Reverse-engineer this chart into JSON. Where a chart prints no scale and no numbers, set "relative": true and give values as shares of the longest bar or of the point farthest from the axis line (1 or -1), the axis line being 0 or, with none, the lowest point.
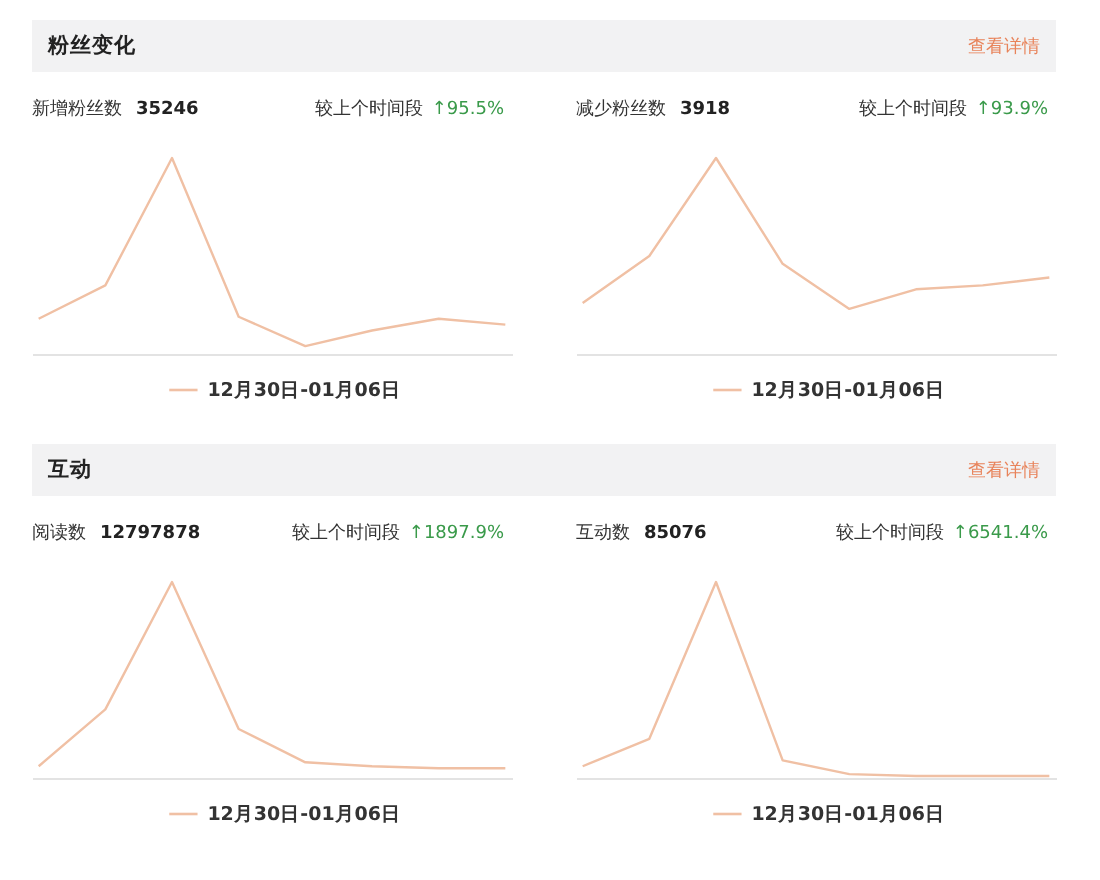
{
  "chart_data": [
    {
      "type": "other",
      "title": "粉丝变化",
      "annotations": [
        "查看详情"
      ]
    },
    {
      "type": "line",
      "title": "新增粉丝数",
      "subtitle": "35246",
      "annotations": [
        "较上个时间段",
        "↑95.5%"
      ],
      "categories": [
        null,
        null,
        null,
        null,
        null,
        null,
        null,
        null
      ],
      "series": [
        {
          "name": "12月30日-01月06日",
          "color": "#f0c0a4",
          "values": [
            0.18,
            0.35,
            1,
            0.19,
            0.04,
            0.12,
            0.18,
            0.15
          ]
        }
      ],
      "relative": true,
      "legend": "bottom",
      "tick_labels": false
    },
    {
      "type": "line",
      "title": "减少粉丝数",
      "subtitle": "3918",
      "annotations": [
        "较上个时间段",
        "↑93.9%"
      ],
      "categories": [
        null,
        null,
        null,
        null,
        null,
        null,
        null,
        null
      ],
      "series": [
        {
          "name": "12月30日-01月06日",
          "color": "#f0c0a4",
          "values": [
            0.26,
            0.5,
            1,
            0.46,
            0.23,
            0.33,
            0.35,
            0.39
          ]
        }
      ],
      "relative": true,
      "legend": "bottom",
      "tick_labels": false
    },
    {
      "type": "other",
      "title": "互动",
      "annotations": [
        "查看详情"
      ]
    },
    {
      "type": "line",
      "title": "阅读数",
      "subtitle": "12797878",
      "annotations": [
        "较上个时间段",
        "↑1897.9%"
      ],
      "categories": [
        null,
        null,
        null,
        null,
        null,
        null,
        null,
        null
      ],
      "series": [
        {
          "name": "12月30日-01月06日",
          "color": "#f0c0a4",
          "values": [
            0.06,
            0.35,
            1,
            0.25,
            0.08,
            0.06,
            0.05,
            0.05
          ]
        }
      ],
      "relative": true,
      "legend": "bottom",
      "tick_labels": false
    },
    {
      "type": "line",
      "title": "互动数",
      "subtitle": "85076",
      "annotations": [
        "较上个时间段",
        "↑6541.4%"
      ],
      "categories": [
        null,
        null,
        null,
        null,
        null,
        null,
        null,
        null
      ],
      "series": [
        {
          "name": "12月30日-01月06日",
          "color": "#f0c0a4",
          "values": [
            0.06,
            0.2,
            1,
            0.09,
            0.02,
            0.01,
            0.01,
            0.01
          ]
        }
      ],
      "relative": true,
      "legend": "bottom",
      "tick_labels": false
    }
  ]
}
